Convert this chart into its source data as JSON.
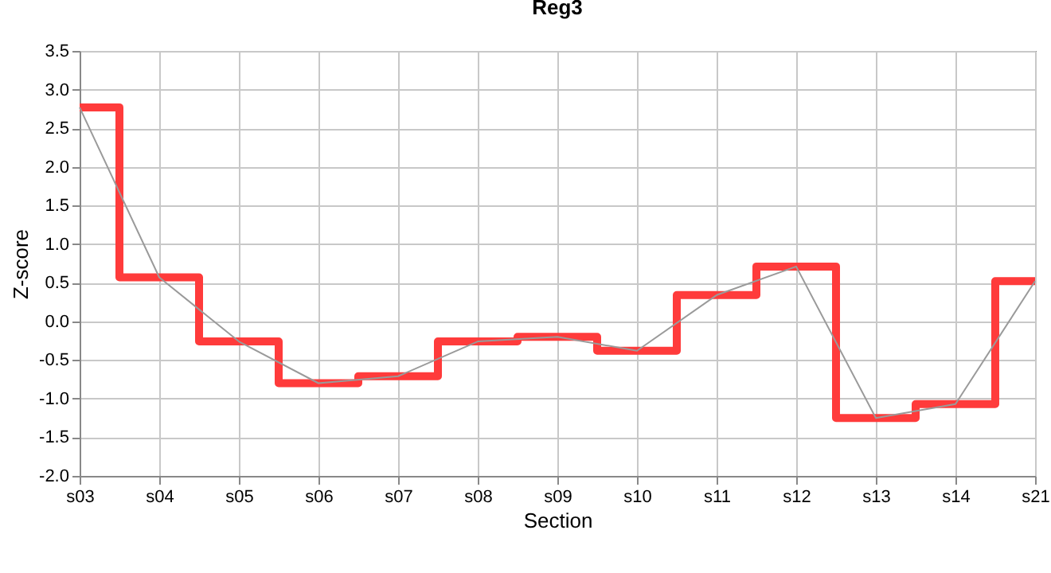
{
  "chart_data": {
    "type": "line",
    "title": "Reg3",
    "xlabel": "Section",
    "ylabel": "Z-score",
    "categories": [
      "s03",
      "s04",
      "s05",
      "s06",
      "s07",
      "s08",
      "s09",
      "s10",
      "s11",
      "s12",
      "s13",
      "s14",
      "s21"
    ],
    "series": [
      {
        "type": "step",
        "color": "#ff3b3b",
        "values": [
          2.77,
          0.57,
          -0.26,
          -0.8,
          -0.71,
          -0.26,
          -0.2,
          -0.38,
          0.34,
          0.71,
          -1.25,
          -1.07,
          0.52
        ]
      },
      {
        "type": "line",
        "color": "#9a9a9a",
        "values": [
          2.77,
          0.57,
          -0.26,
          -0.8,
          -0.71,
          -0.26,
          -0.2,
          -0.38,
          0.34,
          0.71,
          -1.25,
          -1.07,
          0.52
        ]
      }
    ],
    "ylim": [
      -2,
      3.5
    ],
    "yticks": [
      {
        "value": -2,
        "label": "-2.0"
      },
      -1.5,
      {
        "value": -1,
        "label": "-1.0"
      },
      -0.5,
      {
        "value": 0,
        "label": "0.0"
      },
      0.5,
      {
        "value": 1,
        "label": "1.0"
      },
      1.5,
      {
        "value": 2,
        "label": "2.0"
      },
      2.5,
      {
        "value": 3,
        "label": "3.0"
      },
      3.5
    ],
    "grid": true,
    "marker": "none",
    "line_style": "solid"
  }
}
